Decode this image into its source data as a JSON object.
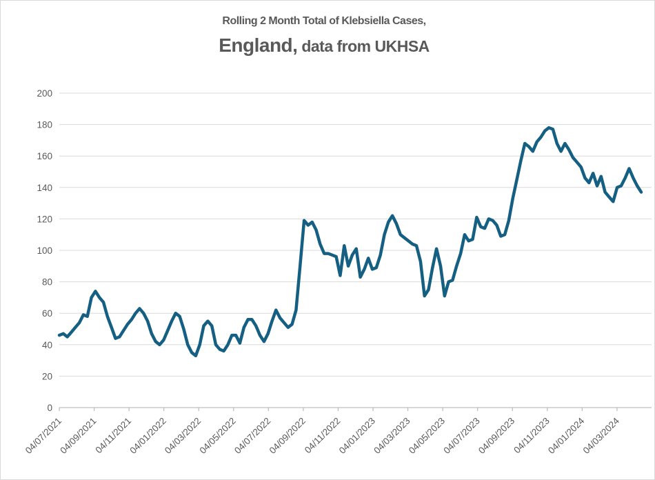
{
  "title": {
    "line1": "Rolling 2 Month Total of Klebsiella Cases,",
    "line2_big": "England,",
    "line2_small": " data from UKHSA"
  },
  "chart_data": {
    "type": "line",
    "title": "Rolling 2 Month Total of Klebsiella Cases, England, data from UKHSA",
    "x_interval": "weekly",
    "x_start_label": "04/07/2021",
    "x_tick_labels": [
      "04/07/2021",
      "04/09/2021",
      "04/11/2021",
      "04/01/2022",
      "04/03/2022",
      "04/05/2022",
      "04/07/2022",
      "04/09/2022",
      "04/11/2022",
      "04/01/2023",
      "04/03/2023",
      "04/05/2023",
      "04/07/2023",
      "04/09/2023",
      "04/11/2023",
      "04/01/2024",
      "04/03/2024"
    ],
    "y_tick_labels": [
      0,
      20,
      40,
      60,
      80,
      100,
      120,
      140,
      160,
      180,
      200
    ],
    "ylim": [
      0,
      200
    ],
    "grid": "horizontal-only",
    "legend": "none",
    "series": [
      {
        "name": "Rolling 2 month total of Klebsiella cases",
        "values": [
          46,
          47,
          45,
          48,
          51,
          54,
          59,
          58,
          70,
          74,
          70,
          67,
          58,
          51,
          44,
          45,
          49,
          53,
          56,
          60,
          63,
          60,
          55,
          47,
          42,
          40,
          43,
          49,
          55,
          60,
          58,
          50,
          40,
          35,
          33,
          40,
          52,
          55,
          52,
          40,
          37,
          36,
          40,
          46,
          46,
          41,
          51,
          56,
          56,
          52,
          46,
          42,
          47,
          55,
          62,
          57,
          54,
          51,
          53,
          62,
          90,
          119,
          116,
          118,
          113,
          104,
          98,
          98,
          97,
          96,
          84,
          103,
          90,
          97,
          101,
          83,
          88,
          95,
          88,
          89,
          97,
          110,
          118,
          122,
          117,
          110,
          108,
          106,
          104,
          103,
          93,
          71,
          75,
          89,
          101,
          90,
          71,
          80,
          81,
          90,
          98,
          110,
          106,
          107,
          121,
          115,
          114,
          120,
          119,
          116,
          109,
          110,
          119,
          133,
          145,
          157,
          168,
          166,
          163,
          169,
          172,
          176,
          178,
          177,
          168,
          163,
          168,
          164,
          159,
          156,
          153,
          146,
          143,
          149,
          141,
          147,
          137,
          134,
          131,
          140,
          141,
          146,
          152,
          146,
          141,
          137
        ]
      }
    ],
    "colors": {
      "line": "#156082",
      "gridline": "#d9d9d9",
      "axis": "#bfbfbf",
      "label_text": "#595959",
      "title_text": "#595959",
      "background": "#ffffff"
    }
  }
}
